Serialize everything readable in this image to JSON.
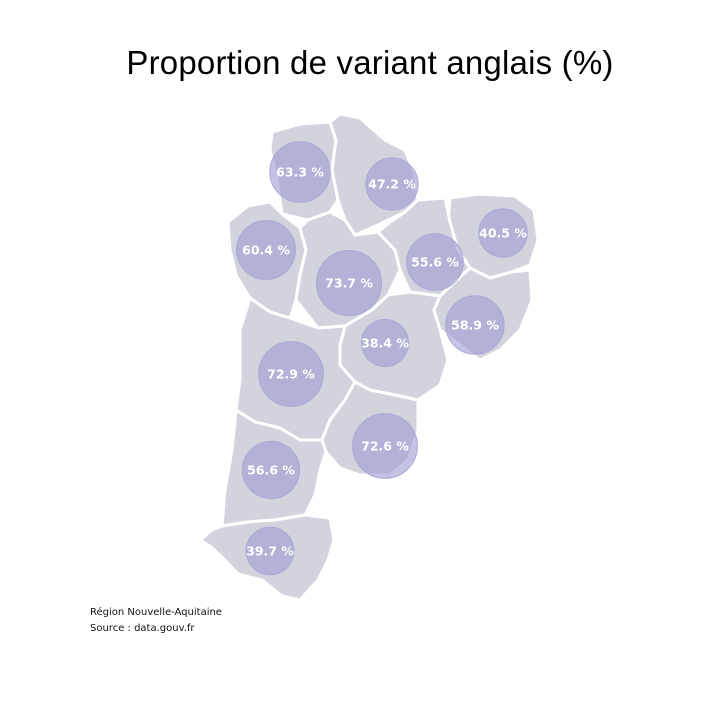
{
  "title": "Proportion de variant anglais (%)",
  "caption": {
    "region": "Région Nouvelle-Aquitaine",
    "source": "Source : data.gouv.fr"
  },
  "colors": {
    "land": "#d3d3dd",
    "bubble": "#9e9ed2",
    "border": "#ffffff"
  },
  "departments": [
    {
      "value": 63.3,
      "label": "63.3 %"
    },
    {
      "value": 47.2,
      "label": "47.2 %"
    },
    {
      "value": 40.5,
      "label": "40.5 %"
    },
    {
      "value": 60.4,
      "label": "60.4 %"
    },
    {
      "value": 73.7,
      "label": "73.7 %"
    },
    {
      "value": 55.6,
      "label": "55.6 %"
    },
    {
      "value": 58.9,
      "label": "58.9 %"
    },
    {
      "value": 38.4,
      "label": "38.4 %"
    },
    {
      "value": 72.9,
      "label": "72.9 %"
    },
    {
      "value": 72.6,
      "label": "72.6 %"
    },
    {
      "value": 56.6,
      "label": "56.6 %"
    },
    {
      "value": 39.7,
      "label": "39.7 %"
    }
  ]
}
